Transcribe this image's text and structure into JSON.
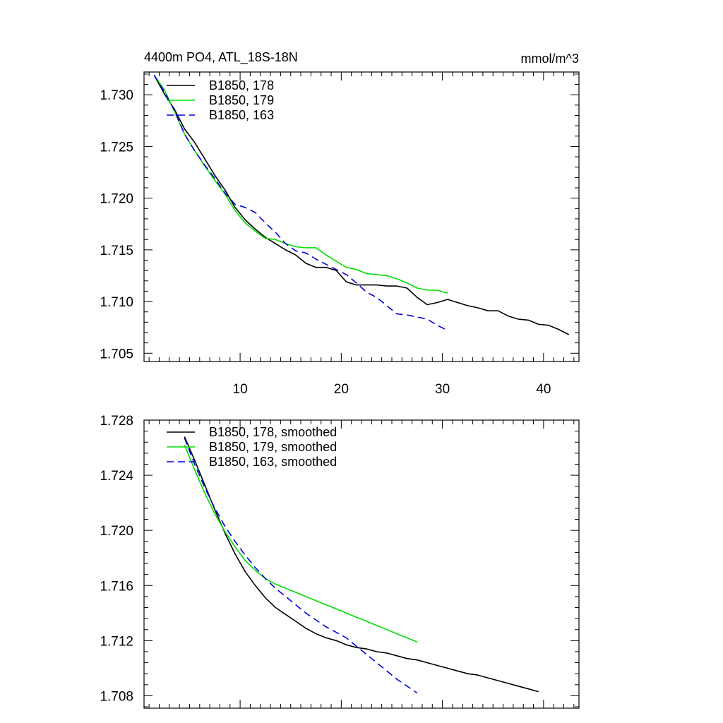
{
  "chart_data": [
    {
      "type": "line",
      "title": "4400m PO4, ATL_18S-18N",
      "units": "mmol/m^3",
      "xlim": [
        0.5,
        43.5
      ],
      "ylim": [
        1.7042,
        1.7322
      ],
      "x_ticks": [
        10,
        20,
        30,
        40
      ],
      "y_ticks": [
        1.705,
        1.71,
        1.715,
        1.72,
        1.725,
        1.73
      ],
      "y_tick_labels": [
        "1.705",
        "1.710",
        "1.715",
        "1.720",
        "1.725",
        "1.730"
      ],
      "x_tick_labels": [
        "10",
        "20",
        "30",
        "40"
      ],
      "show_x_tick_labels": true,
      "legend_position": "top-left",
      "series": [
        {
          "name": "B1850, 178",
          "color": "#000000",
          "dash": "solid",
          "x": [
            1.5,
            2.5,
            3.5,
            4.5,
            5.5,
            6.5,
            7.5,
            8.5,
            9.5,
            10.5,
            11.5,
            12.5,
            13.5,
            14.5,
            15.5,
            16.5,
            17.5,
            18.5,
            19.5,
            20.5,
            21.5,
            22.5,
            23.5,
            24.5,
            25.5,
            26.5,
            27.5,
            28.5,
            29.5,
            30.5,
            31.5,
            32.5,
            33.5,
            34.5,
            35.5,
            36.5,
            37.5,
            38.5,
            39.5,
            40.5,
            41.5,
            42.5
          ],
          "y": [
            1.7319,
            1.7301,
            1.7286,
            1.7267,
            1.7254,
            1.7238,
            1.7222,
            1.7208,
            1.7191,
            1.7179,
            1.717,
            1.7162,
            1.7156,
            1.715,
            1.7145,
            1.7137,
            1.7133,
            1.7133,
            1.713,
            1.7119,
            1.7116,
            1.7116,
            1.7116,
            1.7115,
            1.7115,
            1.7113,
            1.7104,
            1.7097,
            1.7099,
            1.7102,
            1.7099,
            1.7096,
            1.7094,
            1.7091,
            1.7091,
            1.7086,
            1.7083,
            1.7082,
            1.7078,
            1.7077,
            1.7073,
            1.7068
          ]
        },
        {
          "name": "B1850, 179",
          "color": "#00dd00",
          "dash": "solid",
          "x": [
            1.5,
            2.5,
            3.5,
            4.5,
            5.5,
            6.5,
            7.5,
            8.5,
            9.5,
            10.5,
            11.5,
            12.5,
            13.5,
            14.5,
            15.5,
            16.5,
            17.5,
            18.5,
            19.5,
            20.5,
            21.5,
            22.5,
            23.5,
            24.5,
            25.5,
            26.5,
            27.5,
            28.5,
            29.5,
            30.5
          ],
          "y": [
            1.7319,
            1.7305,
            1.7284,
            1.7262,
            1.7246,
            1.7231,
            1.7217,
            1.7204,
            1.7188,
            1.7176,
            1.7168,
            1.7161,
            1.716,
            1.7156,
            1.7153,
            1.7152,
            1.7152,
            1.7145,
            1.7139,
            1.7133,
            1.7131,
            1.7127,
            1.7126,
            1.7125,
            1.7122,
            1.7118,
            1.7113,
            1.7111,
            1.7111,
            1.7108
          ]
        },
        {
          "name": "B1850, 163",
          "color": "#0000dd",
          "dash": "dashed",
          "x": [
            1.5,
            2.5,
            3.5,
            4.5,
            5.5,
            6.5,
            7.5,
            8.5,
            9.5,
            10.5,
            11.5,
            12.5,
            13.5,
            14.5,
            15.5,
            16.5,
            17.5,
            18.5,
            19.5,
            20.5,
            21.5,
            22.5,
            23.5,
            24.5,
            25.5,
            26.5,
            27.5,
            28.5,
            29.5,
            30.5
          ],
          "y": [
            1.7319,
            1.7303,
            1.7285,
            1.7262,
            1.7246,
            1.7232,
            1.7219,
            1.7205,
            1.7194,
            1.7191,
            1.7186,
            1.7176,
            1.7167,
            1.7156,
            1.7149,
            1.7147,
            1.7141,
            1.7136,
            1.7131,
            1.7126,
            1.7118,
            1.7109,
            1.7104,
            1.7096,
            1.7088,
            1.7087,
            1.7085,
            1.7083,
            1.7077,
            1.7072
          ]
        }
      ]
    },
    {
      "type": "line",
      "title": "",
      "xlim": [
        0.5,
        43.5
      ],
      "ylim": [
        1.7071,
        1.728
      ],
      "x_ticks": [
        10,
        20,
        30,
        40
      ],
      "y_ticks": [
        1.708,
        1.712,
        1.716,
        1.72,
        1.724,
        1.728
      ],
      "y_tick_labels": [
        "1.708",
        "1.712",
        "1.716",
        "1.720",
        "1.724",
        "1.728"
      ],
      "x_tick_labels": [],
      "show_x_tick_labels": false,
      "legend_position": "top-left",
      "series": [
        {
          "name": "B1850, 178, smoothed",
          "color": "#000000",
          "dash": "solid",
          "x": [
            4.5,
            5.5,
            6.5,
            7.5,
            8.5,
            9.5,
            10.5,
            11.5,
            12.5,
            13.5,
            14.5,
            15.5,
            16.5,
            17.5,
            18.5,
            19.5,
            20.5,
            21.5,
            22.5,
            23.5,
            24.5,
            25.5,
            26.5,
            27.5,
            28.5,
            29.5,
            30.5,
            31.5,
            32.5,
            33.5,
            34.5,
            35.5,
            36.5,
            37.5,
            38.5,
            39.5
          ],
          "y": [
            1.7268,
            1.7251,
            1.7233,
            1.7215,
            1.7198,
            1.7183,
            1.717,
            1.716,
            1.7151,
            1.7144,
            1.7139,
            1.7134,
            1.7129,
            1.7125,
            1.7122,
            1.712,
            1.7117,
            1.7115,
            1.7114,
            1.7112,
            1.7111,
            1.7109,
            1.7107,
            1.7106,
            1.7104,
            1.7102,
            1.71,
            1.7098,
            1.7096,
            1.7095,
            1.7093,
            1.7091,
            1.7089,
            1.7087,
            1.7085,
            1.7083
          ]
        },
        {
          "name": "B1850, 179, smoothed",
          "color": "#00dd00",
          "dash": "solid",
          "x": [
            4.5,
            5.5,
            6.5,
            7.5,
            8.5,
            9.5,
            10.5,
            11.5,
            12.5,
            13.5,
            14.5,
            15.5,
            16.5,
            17.5,
            18.5,
            19.5,
            20.5,
            21.5,
            22.5,
            23.5,
            24.5,
            25.5,
            26.5,
            27.5
          ],
          "y": [
            1.7262,
            1.7244,
            1.7227,
            1.7212,
            1.7199,
            1.7188,
            1.7178,
            1.7171,
            1.7165,
            1.7161,
            1.7158,
            1.7155,
            1.7152,
            1.7149,
            1.7146,
            1.7143,
            1.714,
            1.7137,
            1.7134,
            1.7131,
            1.7128,
            1.7125,
            1.7122,
            1.7119
          ]
        },
        {
          "name": "B1850, 163, smoothed",
          "color": "#0000dd",
          "dash": "dashed",
          "x": [
            4.5,
            5.5,
            6.5,
            7.5,
            8.5,
            9.5,
            10.5,
            11.5,
            12.5,
            13.5,
            14.5,
            15.5,
            16.5,
            17.5,
            18.5,
            19.5,
            20.5,
            21.5,
            22.5,
            23.5,
            24.5,
            25.5,
            26.5,
            27.5
          ],
          "y": [
            1.7267,
            1.7248,
            1.7231,
            1.7216,
            1.7203,
            1.7192,
            1.7182,
            1.7173,
            1.7165,
            1.7158,
            1.7152,
            1.7146,
            1.714,
            1.7135,
            1.713,
            1.7126,
            1.7122,
            1.7116,
            1.711,
            1.7104,
            1.7098,
            1.7092,
            1.7087,
            1.7082
          ]
        }
      ]
    }
  ]
}
